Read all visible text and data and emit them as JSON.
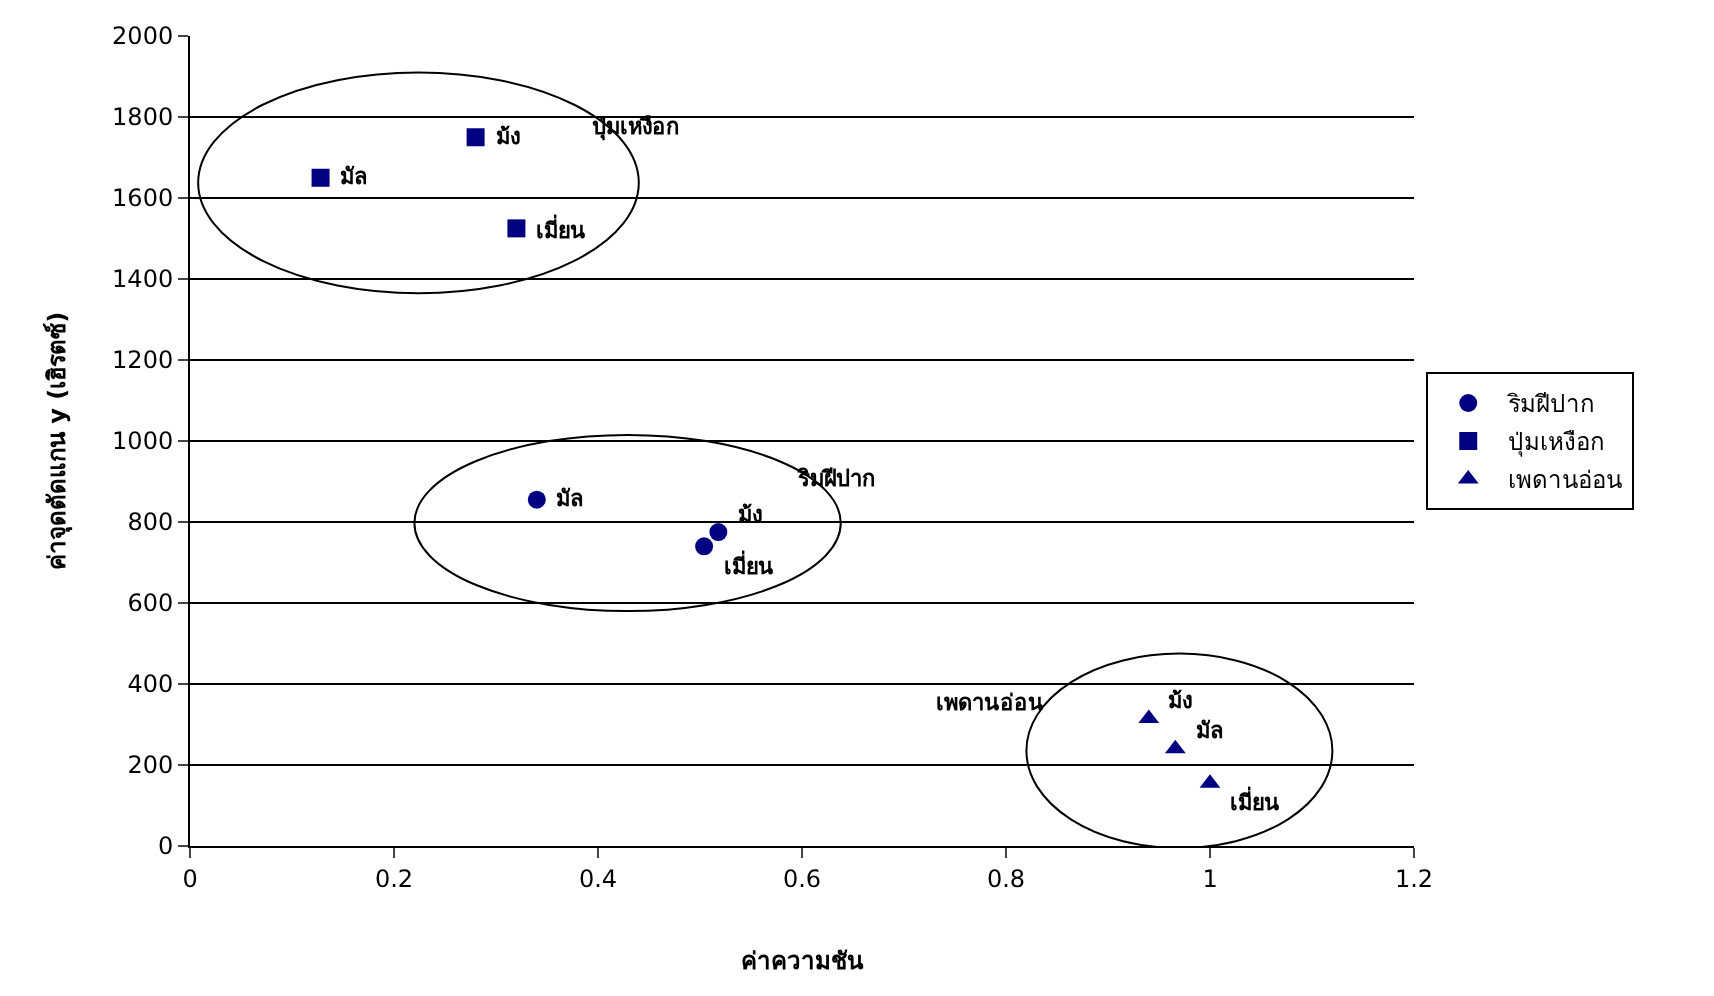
{
  "chart_data": {
    "type": "scatter",
    "xlabel": "ค่าความชัน",
    "ylabel": "ค่าจุดตัดแกน y (เฮิรตซ์)",
    "series": [
      {
        "name": "ริมฝีปาก",
        "color": "#000080",
        "marker": "circle",
        "x": [
          0.34,
          0.518,
          0.504
        ],
        "values": [
          855,
          775,
          740
        ]
      },
      {
        "name": "ปุ่มเหงือก",
        "color": "#000080",
        "marker": "square",
        "x": [
          0.128,
          0.28,
          0.32
        ],
        "values": [
          1650,
          1750,
          1525
        ]
      },
      {
        "name": "เพดานอ่อน",
        "color": "#000080",
        "marker": "triangle",
        "x": [
          0.94,
          0.966,
          1.0
        ],
        "values": [
          315,
          240,
          155
        ]
      }
    ],
    "annotations": [
      {
        "text": "มัล",
        "x": 0.34,
        "y": 855
      },
      {
        "text": "ม้ง",
        "x": 0.518,
        "y": 775
      },
      {
        "text": "เมี่ยน",
        "x": 0.504,
        "y": 740
      },
      {
        "text": "มัล",
        "x": 0.128,
        "y": 1650
      },
      {
        "text": "ม้ง",
        "x": 0.28,
        "y": 1750
      },
      {
        "text": "เมี่ยน",
        "x": 0.32,
        "y": 1525
      },
      {
        "text": "ม้ง",
        "x": 0.94,
        "y": 315
      },
      {
        "text": "มัล",
        "x": 0.966,
        "y": 240
      },
      {
        "text": "เมี่ยน",
        "x": 1.0,
        "y": 155
      },
      "ริมฝีปาก",
      "ปุ่มเหงือก",
      "เพดานอ่อน"
    ],
    "xlim": [
      0,
      1.2
    ],
    "xticks": [
      0,
      0.2,
      0.4,
      0.6,
      0.8,
      1,
      1.2
    ],
    "ylim": [
      0,
      2000
    ],
    "yticks": [
      0,
      200,
      400,
      600,
      800,
      1000,
      1200,
      1400,
      1600,
      1800,
      2000
    ],
    "grid": "y",
    "legend": "right"
  }
}
